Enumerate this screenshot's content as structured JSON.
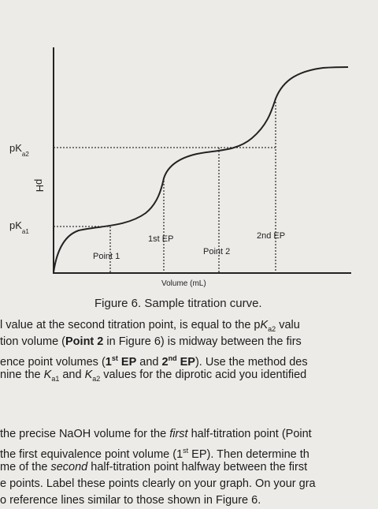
{
  "figure": {
    "pka2": [
      "pK",
      "a2"
    ],
    "y_axis_label": "pH",
    "pka1": [
      "pK",
      "a1"
    ],
    "ep1": "1st EP",
    "ep2": "2nd EP",
    "point1": "Point 1",
    "point2": "Point 2",
    "x_axis_label": "Volume (mL)",
    "caption": "Figure 6. Sample titration curve."
  },
  "paragraphs": [
    [
      [
        "l value at the second titration point, is equal to the p",
        "K",
        "a2",
        " valu"
      ],
      [
        "tion volume (",
        "Point 2",
        " in Figure 6) is midway between the firs"
      ],
      [
        "ence point volumes (",
        "1",
        "st",
        " EP",
        " and ",
        "2",
        "nd",
        " EP",
        "). Use the method des"
      ],
      [
        "nine the ",
        "K",
        "a1",
        " and ",
        "K",
        "a2",
        " values for the diprotic acid you identified"
      ]
    ],
    [
      [
        "the precise NaOH volume for the ",
        "first",
        " half-titration point (Point"
      ],
      [
        "the first equivalence point volume (1",
        "st",
        " EP). Then determine th"
      ],
      [
        "me of the ",
        "second",
        " half-titration point halfway between the first"
      ],
      [
        "e points. Label these points clearly on your graph. On your gra"
      ],
      [
        "o reference lines similar to those shown in Figure 6."
      ]
    ]
  ]
}
